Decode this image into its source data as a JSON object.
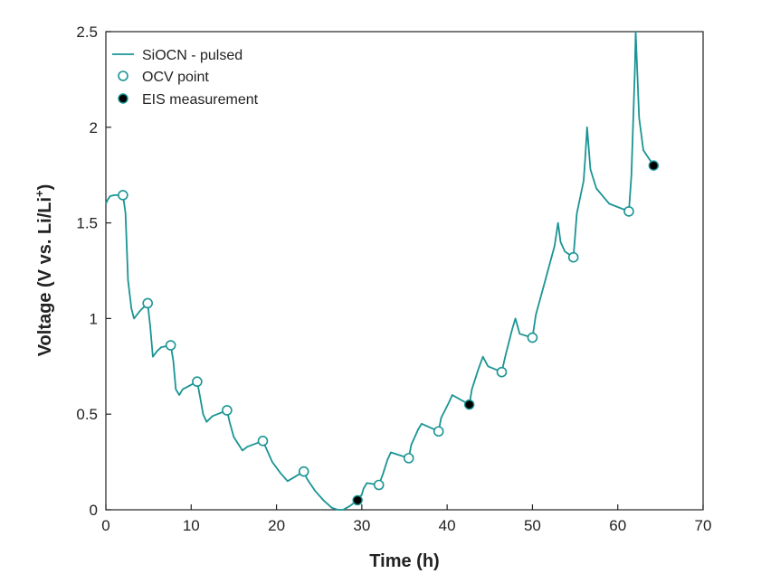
{
  "chart_data": {
    "type": "line",
    "xlabel": "Time (h)",
    "ylabel_main": "Voltage (V vs. Li/Li",
    "ylabel_sup": "+",
    "ylabel_tail": ")",
    "xlim": [
      0,
      70
    ],
    "ylim": [
      0,
      2.5
    ],
    "xticks": [
      "0",
      "10",
      "20",
      "30",
      "40",
      "50",
      "60",
      "70"
    ],
    "yticks": [
      "0",
      "0.5",
      "1",
      "1.5",
      "2",
      "2.5"
    ],
    "grid": false,
    "legend_position": "top-left",
    "colors": {
      "line": "#1a9494",
      "ocv": "#1a9494",
      "eis": "#000000"
    },
    "series": [
      {
        "name": "SiOCN - pulsed",
        "style": "line",
        "x": [
          0,
          0.2,
          0.5,
          1.0,
          1.5,
          2.0,
          2.3,
          2.6,
          3.0,
          3.3,
          4.0,
          4.9,
          5.2,
          5.5,
          6.0,
          6.5,
          7.6,
          7.9,
          8.2,
          8.6,
          9.0,
          10.7,
          11.0,
          11.4,
          11.8,
          12.5,
          14.2,
          14.5,
          15.0,
          16.0,
          16.6,
          18.4,
          18.8,
          19.5,
          20.5,
          21.3,
          23.2,
          23.6,
          24.5,
          25.5,
          26.5,
          27.2,
          27.8,
          28.6,
          29.5,
          30.0,
          30.2,
          30.6,
          32.0,
          32.5,
          33.0,
          33.4,
          35.5,
          35.8,
          36.6,
          37.0,
          39.0,
          39.3,
          40.2,
          40.6,
          42.6,
          42.9,
          43.7,
          44.2,
          44.8,
          46.4,
          46.8,
          47.6,
          48.0,
          48.5,
          50.0,
          50.4,
          51.5,
          52.6,
          53.0,
          53.3,
          53.8,
          54.8,
          55.2,
          56.0,
          56.2,
          56.4,
          56.8,
          57.5,
          59.0,
          61.3,
          61.6,
          62.0,
          62.1,
          62.5,
          63.0,
          64.2
        ],
        "y": [
          1.6,
          1.62,
          1.64,
          1.645,
          1.645,
          1.645,
          1.55,
          1.2,
          1.05,
          1.0,
          1.04,
          1.08,
          0.96,
          0.8,
          0.83,
          0.85,
          0.86,
          0.78,
          0.63,
          0.6,
          0.63,
          0.67,
          0.6,
          0.5,
          0.46,
          0.49,
          0.52,
          0.46,
          0.38,
          0.31,
          0.33,
          0.36,
          0.32,
          0.25,
          0.19,
          0.15,
          0.2,
          0.16,
          0.1,
          0.05,
          0.01,
          0.0,
          0.0,
          0.02,
          0.05,
          0.08,
          0.11,
          0.14,
          0.13,
          0.19,
          0.26,
          0.3,
          0.27,
          0.34,
          0.42,
          0.45,
          0.41,
          0.48,
          0.56,
          0.6,
          0.55,
          0.63,
          0.74,
          0.8,
          0.75,
          0.72,
          0.8,
          0.94,
          1.0,
          0.92,
          0.9,
          1.02,
          1.2,
          1.38,
          1.5,
          1.4,
          1.35,
          1.32,
          1.55,
          1.72,
          1.85,
          2.0,
          1.78,
          1.68,
          1.6,
          1.56,
          1.75,
          2.3,
          2.5,
          2.05,
          1.88,
          1.8
        ]
      },
      {
        "name": "OCV point",
        "style": "open-circle",
        "x": [
          2.0,
          4.9,
          7.6,
          10.7,
          14.2,
          18.4,
          23.2,
          32.0,
          35.5,
          39.0,
          46.4,
          50.0,
          54.8,
          61.3
        ],
        "y": [
          1.645,
          1.08,
          0.86,
          0.67,
          0.52,
          0.36,
          0.2,
          0.13,
          0.27,
          0.41,
          0.72,
          0.9,
          1.32,
          1.56
        ]
      },
      {
        "name": "EIS measurement",
        "style": "filled-circle",
        "x": [
          29.5,
          42.6,
          64.2
        ],
        "y": [
          0.05,
          0.55,
          1.8
        ]
      }
    ]
  }
}
